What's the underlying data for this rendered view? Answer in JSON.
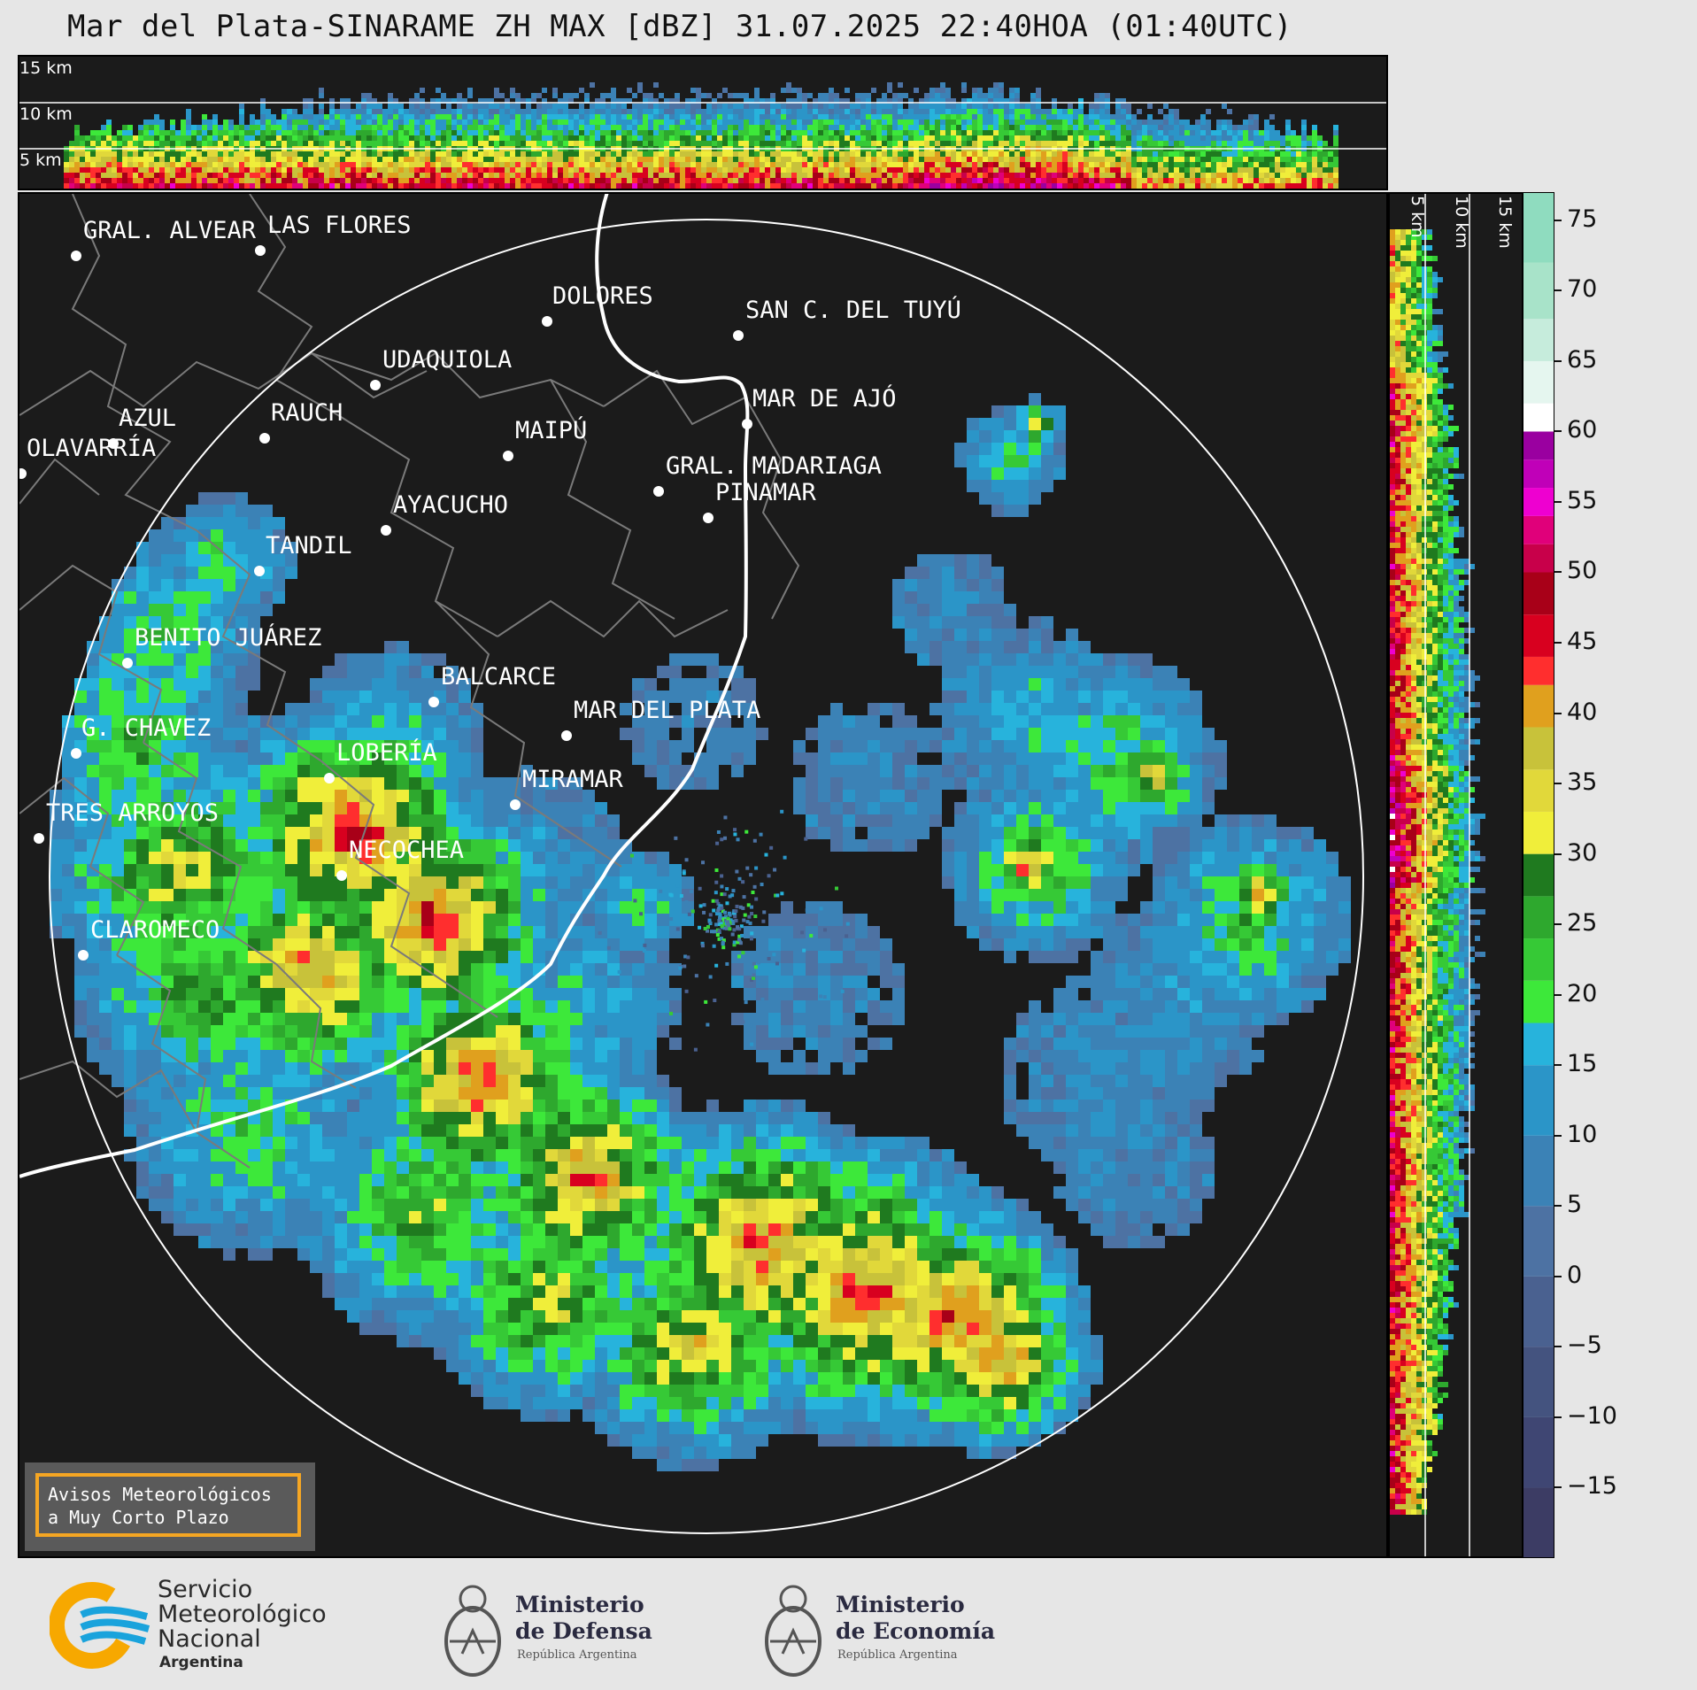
{
  "title": "Mar del Plata-SINARAME ZH MAX [dBZ] 31.07.2025 22:40HOA (01:40UTC)",
  "height_labels": [
    "15 km",
    "10 km",
    "5 km"
  ],
  "colorbar": {
    "ticks": [
      "75",
      "70",
      "65",
      "60",
      "55",
      "50",
      "45",
      "40",
      "35",
      "30",
      "25",
      "20",
      "15",
      "10",
      "5",
      "0",
      "−5",
      "−10",
      "−15"
    ],
    "range_dbz": [
      -20,
      77
    ],
    "stops": [
      {
        "from": -20,
        "to": -15,
        "color": "#3c3c64"
      },
      {
        "from": -15,
        "to": -10,
        "color": "#3f4673"
      },
      {
        "from": -10,
        "to": -5,
        "color": "#44537f"
      },
      {
        "from": -5,
        "to": 0,
        "color": "#4a6190"
      },
      {
        "from": 0,
        "to": 5,
        "color": "#4d72a3"
      },
      {
        "from": 5,
        "to": 10,
        "color": "#3b82b6"
      },
      {
        "from": 10,
        "to": 15,
        "color": "#2b95c8"
      },
      {
        "from": 15,
        "to": 18,
        "color": "#27b3dc"
      },
      {
        "from": 18,
        "to": 21,
        "color": "#3de83a"
      },
      {
        "from": 21,
        "to": 24,
        "color": "#36c936"
      },
      {
        "from": 24,
        "to": 27,
        "color": "#2ea82e"
      },
      {
        "from": 27,
        "to": 30,
        "color": "#1f7a1f"
      },
      {
        "from": 30,
        "to": 33,
        "color": "#f0ee3a"
      },
      {
        "from": 33,
        "to": 36,
        "color": "#e1d83a"
      },
      {
        "from": 36,
        "to": 39,
        "color": "#c8c23a"
      },
      {
        "from": 39,
        "to": 42,
        "color": "#e0a01e"
      },
      {
        "from": 42,
        "to": 44,
        "color": "#ff2e2e"
      },
      {
        "from": 44,
        "to": 47,
        "color": "#d8001f"
      },
      {
        "from": 47,
        "to": 50,
        "color": "#a80018"
      },
      {
        "from": 50,
        "to": 52,
        "color": "#c8004a"
      },
      {
        "from": 52,
        "to": 54,
        "color": "#e0007a"
      },
      {
        "from": 54,
        "to": 56,
        "color": "#ee00d0"
      },
      {
        "from": 56,
        "to": 58,
        "color": "#c000b8"
      },
      {
        "from": 58,
        "to": 60,
        "color": "#9a00a0"
      },
      {
        "from": 60,
        "to": 62,
        "color": "#ffffff"
      },
      {
        "from": 62,
        "to": 65,
        "color": "#e5f6ef"
      },
      {
        "from": 65,
        "to": 68,
        "color": "#c6ecdc"
      },
      {
        "from": 68,
        "to": 72,
        "color": "#a8e3c9"
      },
      {
        "from": 72,
        "to": 77,
        "color": "#8fdcbf"
      }
    ]
  },
  "cities": [
    {
      "name": "GRAL. ALVEAR"
    },
    {
      "name": "LAS FLORES"
    },
    {
      "name": "DOLORES"
    },
    {
      "name": "SAN C. DEL TUYÚ"
    },
    {
      "name": "UDAQUIOLA"
    },
    {
      "name": "MAR DE AJÓ"
    },
    {
      "name": "RAUCH"
    },
    {
      "name": "AZUL"
    },
    {
      "name": "MAIPÚ"
    },
    {
      "name": "OLAVARRÍA"
    },
    {
      "name": "GRAL. MADARIAGA"
    },
    {
      "name": "PINAMAR"
    },
    {
      "name": "AYACUCHO"
    },
    {
      "name": "TANDIL"
    },
    {
      "name": "BENITO JUÁREZ"
    },
    {
      "name": "BALCARCE"
    },
    {
      "name": "MAR DEL PLATA"
    },
    {
      "name": "G. CHAVEZ"
    },
    {
      "name": "LOBERÍA"
    },
    {
      "name": "MIRAMAR"
    },
    {
      "name": "TRES ARROYOS"
    },
    {
      "name": "NECOCHEA"
    },
    {
      "name": "CLAROMECO"
    }
  ],
  "warning_box": {
    "line1": "Avisos Meteorológicos",
    "line2": "a Muy Corto Plazo"
  },
  "logos": {
    "smn": {
      "line1": "Servicio",
      "line2": "Meteorológico",
      "line3": "Nacional",
      "line4": "Argentina"
    },
    "defensa": {
      "line1": "Ministerio",
      "line2": "de Defensa",
      "line3": "República Argentina"
    },
    "economia": {
      "line1": "Ministerio",
      "line2": "de Economía",
      "line3": "República Argentina"
    }
  },
  "colors": {
    "background": "#1b1b1b",
    "page": "#e6e6e6",
    "accent_orange": "#f5a623",
    "smn_blue": "#1aa3dc",
    "smn_orange": "#f7a800"
  }
}
